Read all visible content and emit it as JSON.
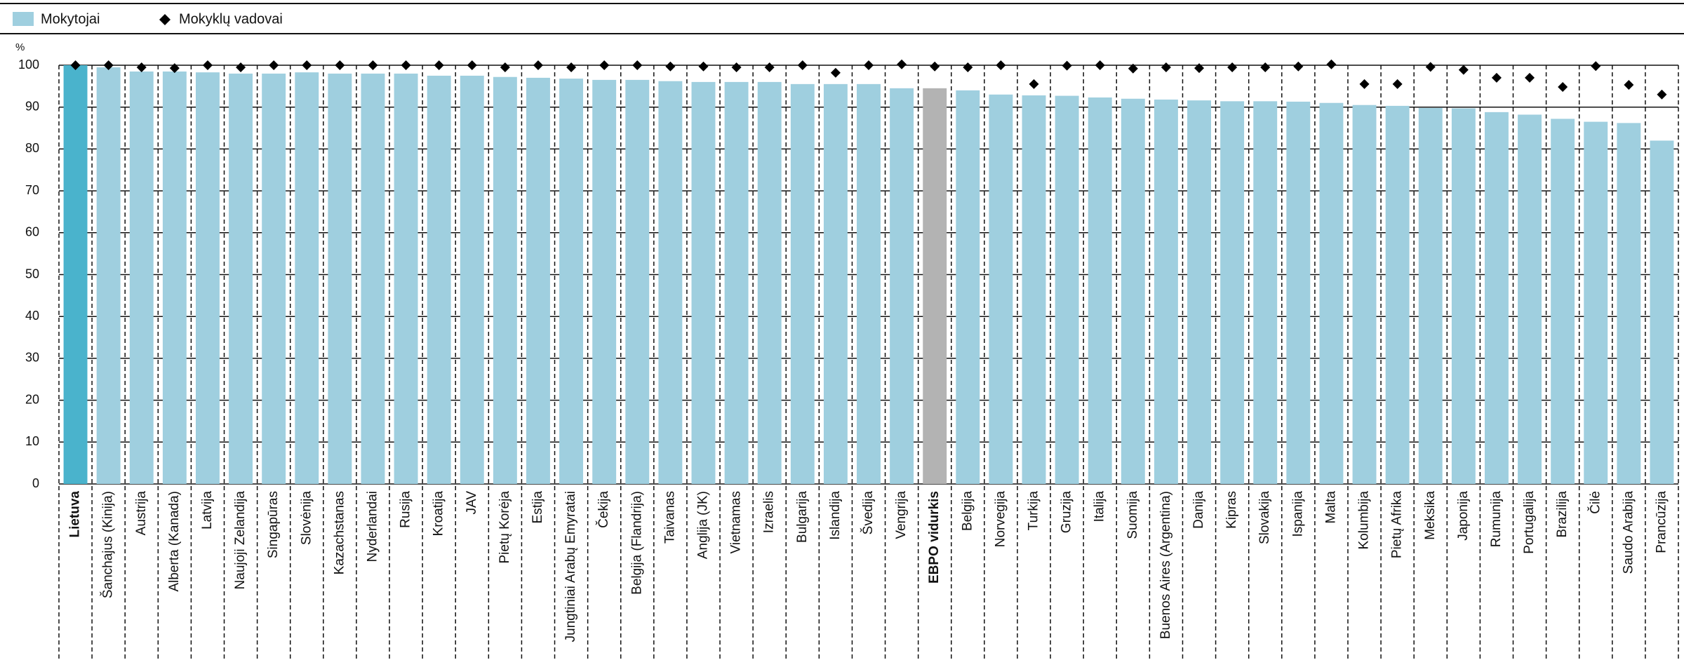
{
  "chart_data": {
    "type": "bar",
    "y_label": "%",
    "categories": [
      "Lietuva",
      "Šanchajus (Kinija)",
      "Austrija",
      "Alberta (Kanada)",
      "Latvija",
      "Naujoji Zelandija",
      "Singapūras",
      "Slovėnija",
      "Kazachstanas",
      "Nyderlandai",
      "Rusija",
      "Kroatija",
      "JAV",
      "Pietų Korėja",
      "Estija",
      "Jungtiniai Arabų Emyratai",
      "Čekija",
      "Belgija (Flandrija)",
      "Taivanas",
      "Anglija (JK)",
      "Vietnamas",
      "Izraelis",
      "Bulgarija",
      "Islandija",
      "Švedija",
      "Vengrija",
      "EBPO vidurkis",
      "Belgija",
      "Norvegija",
      "Turkija",
      "Gruzija",
      "Italija",
      "Suomija",
      "Buenos Aires (Argentina)",
      "Danija",
      "Kipras",
      "Slovakija",
      "Ispanija",
      "Malta",
      "Kolumbija",
      "Pietų Afrika",
      "Meksika",
      "Japonija",
      "Rumunija",
      "Portugalija",
      "Brazilija",
      "Čilė",
      "Saudo Arabija",
      "Prancūzija"
    ],
    "series": [
      {
        "name": "Mokytojai",
        "color": "#9fcfdf",
        "colors": [
          "#4ab3cc",
          "#9fcfdf",
          "#9fcfdf",
          "#9fcfdf",
          "#9fcfdf",
          "#9fcfdf",
          "#9fcfdf",
          "#9fcfdf",
          "#9fcfdf",
          "#9fcfdf",
          "#9fcfdf",
          "#9fcfdf",
          "#9fcfdf",
          "#9fcfdf",
          "#9fcfdf",
          "#9fcfdf",
          "#9fcfdf",
          "#9fcfdf",
          "#9fcfdf",
          "#9fcfdf",
          "#9fcfdf",
          "#9fcfdf",
          "#9fcfdf",
          "#9fcfdf",
          "#9fcfdf",
          "#9fcfdf",
          "#b3b3b3",
          "#9fcfdf",
          "#9fcfdf",
          "#9fcfdf",
          "#9fcfdf",
          "#9fcfdf",
          "#9fcfdf",
          "#9fcfdf",
          "#9fcfdf",
          "#9fcfdf",
          "#9fcfdf",
          "#9fcfdf",
          "#9fcfdf",
          "#9fcfdf",
          "#9fcfdf",
          "#9fcfdf",
          "#9fcfdf",
          "#9fcfdf",
          "#9fcfdf",
          "#9fcfdf",
          "#9fcfdf",
          "#9fcfdf",
          "#9fcfdf"
        ],
        "values": [
          100,
          99.5,
          98.5,
          98.5,
          98.3,
          98,
          98,
          98.3,
          98,
          98,
          98,
          97.5,
          97.5,
          97.2,
          97,
          96.8,
          96.5,
          96.5,
          96.2,
          96,
          96,
          96,
          95.5,
          95.5,
          95.5,
          94.5,
          94.5,
          94,
          93,
          92.8,
          92.7,
          92.3,
          92,
          91.8,
          91.6,
          91.4,
          91.4,
          91.3,
          91,
          90.5,
          90.3,
          89.8,
          89.7,
          88.8,
          88.2,
          87.2,
          86.5,
          86.2,
          82
        ]
      },
      {
        "name": "Mokyklų vadovai",
        "color": "#000000",
        "values": [
          100,
          100,
          99.5,
          99.3,
          100,
          99.5,
          100,
          100,
          100,
          100,
          100,
          100,
          100,
          99.5,
          100,
          99.5,
          100,
          100,
          99.7,
          99.7,
          99.5,
          99.5,
          100,
          98.2,
          100,
          100.2,
          99.7,
          99.5,
          100,
          95.5,
          99.9,
          100,
          99.2,
          99.5,
          99.3,
          99.5,
          99.5,
          99.7,
          100.2,
          95.5,
          95.5,
          99.6,
          98.9,
          97,
          97,
          94.8,
          99.8,
          95.3,
          93
        ]
      }
    ],
    "ylim": [
      0,
      100
    ],
    "yticks": [
      0,
      10,
      20,
      30,
      40,
      50,
      60,
      70,
      80,
      90,
      100
    ],
    "grid": true
  }
}
